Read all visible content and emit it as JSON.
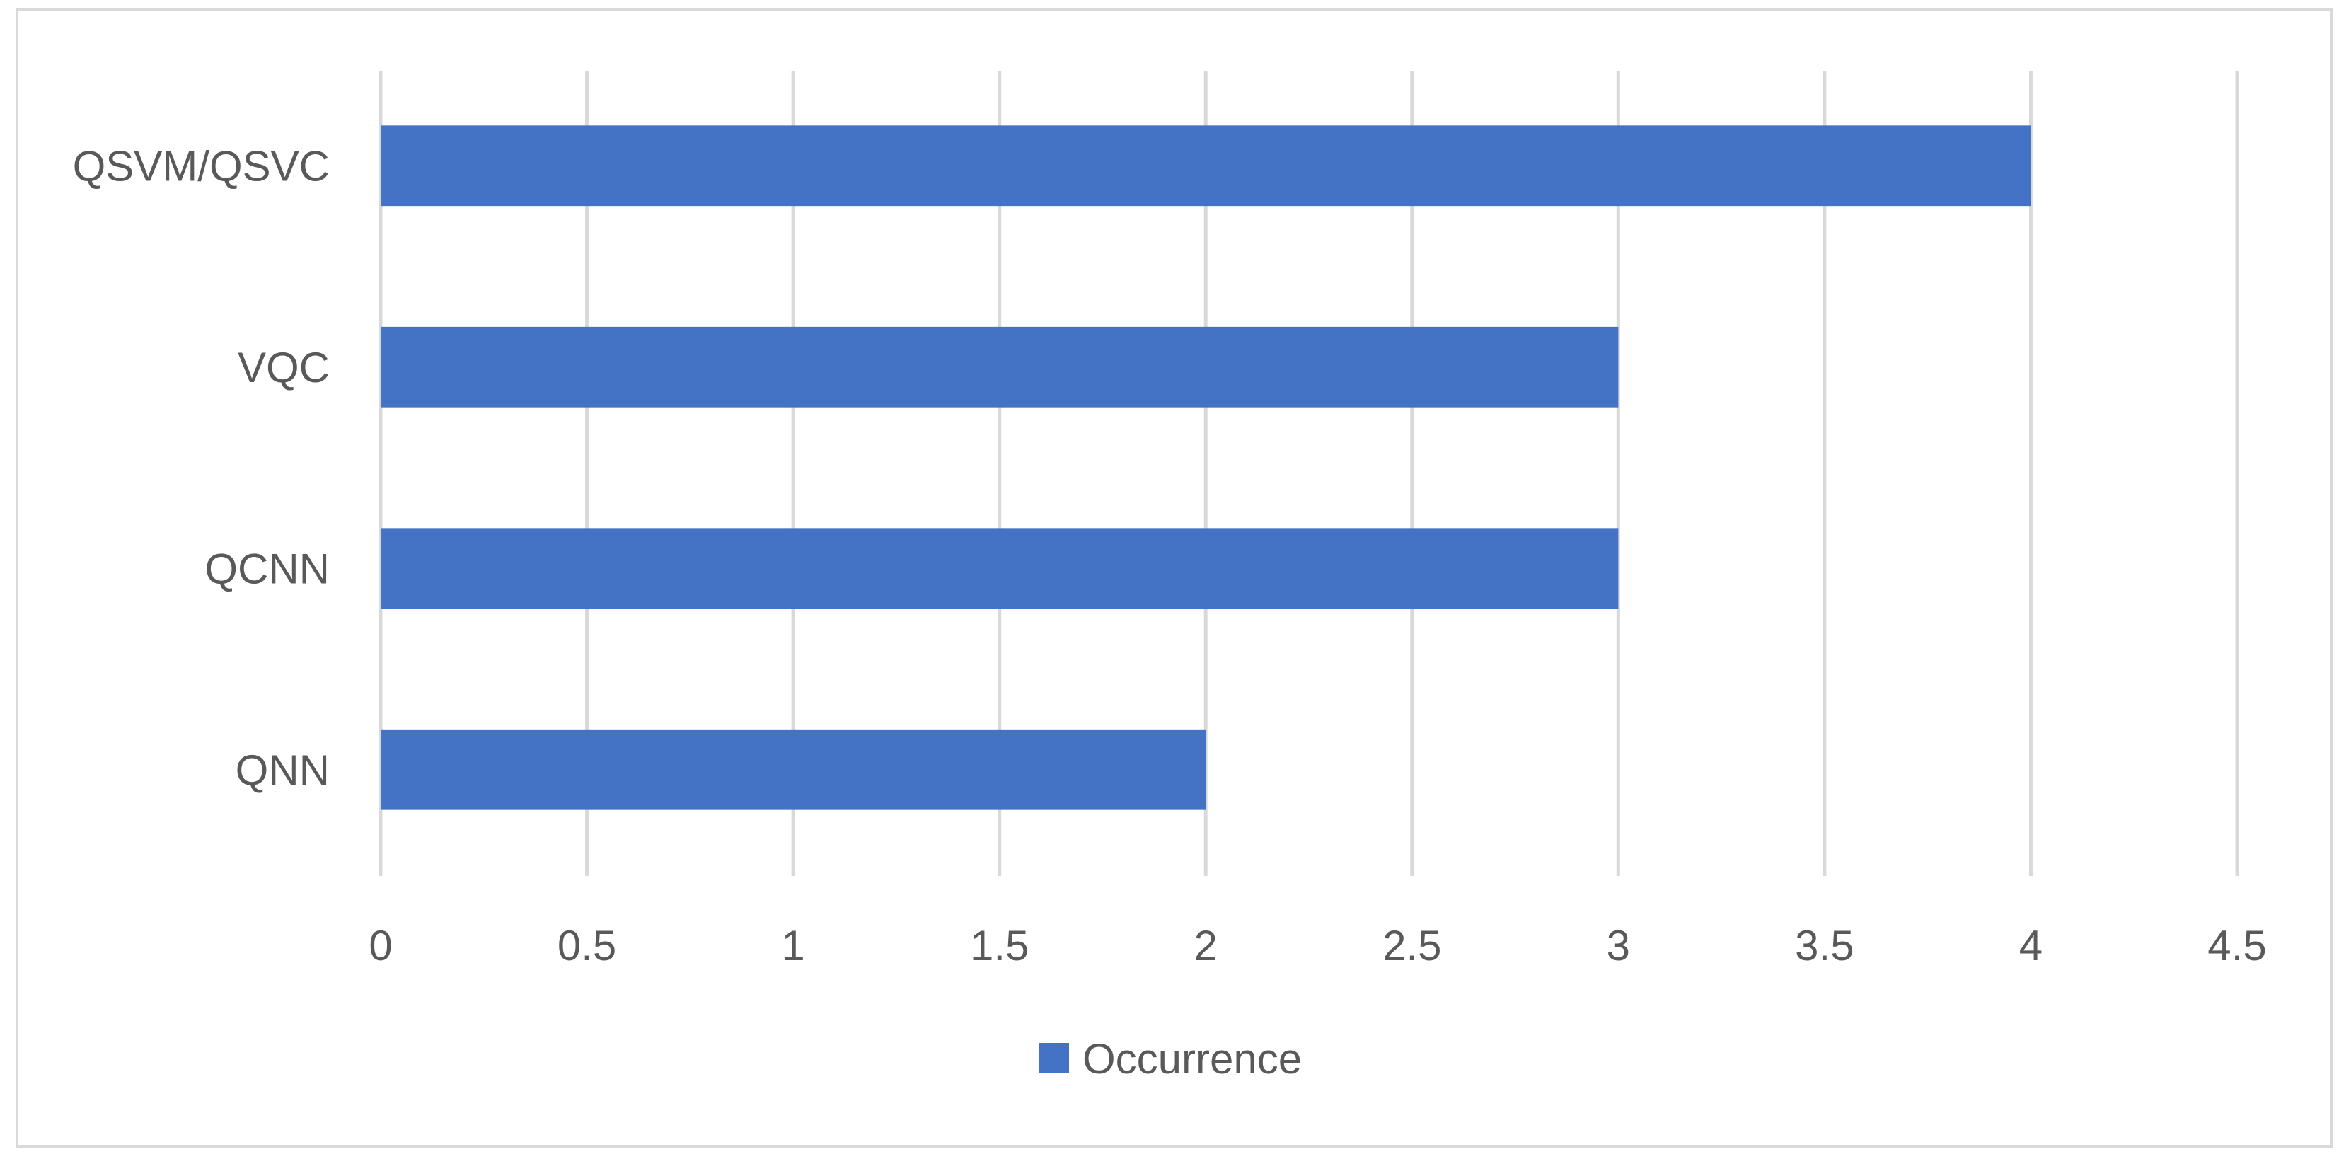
{
  "chart_data": {
    "type": "bar",
    "orientation": "horizontal",
    "categories": [
      "QSVM/QSVC",
      "VQC",
      "QCNN",
      "QNN"
    ],
    "series": [
      {
        "name": "Occurrence",
        "values": [
          4,
          3,
          3,
          2
        ],
        "color": "#4472c4"
      }
    ],
    "title": "",
    "xlabel": "",
    "ylabel": "",
    "xlim": [
      0,
      4.5
    ],
    "xticks": [
      "0",
      "0.5",
      "1",
      "1.5",
      "2",
      "2.5",
      "3",
      "3.5",
      "4",
      "4.5"
    ],
    "grid": "vertical",
    "legend_position": "bottom"
  },
  "colors": {
    "bar": "#4472c4",
    "grid": "#d9d9d9",
    "text": "#595959",
    "frame": "#d9d9d9"
  }
}
